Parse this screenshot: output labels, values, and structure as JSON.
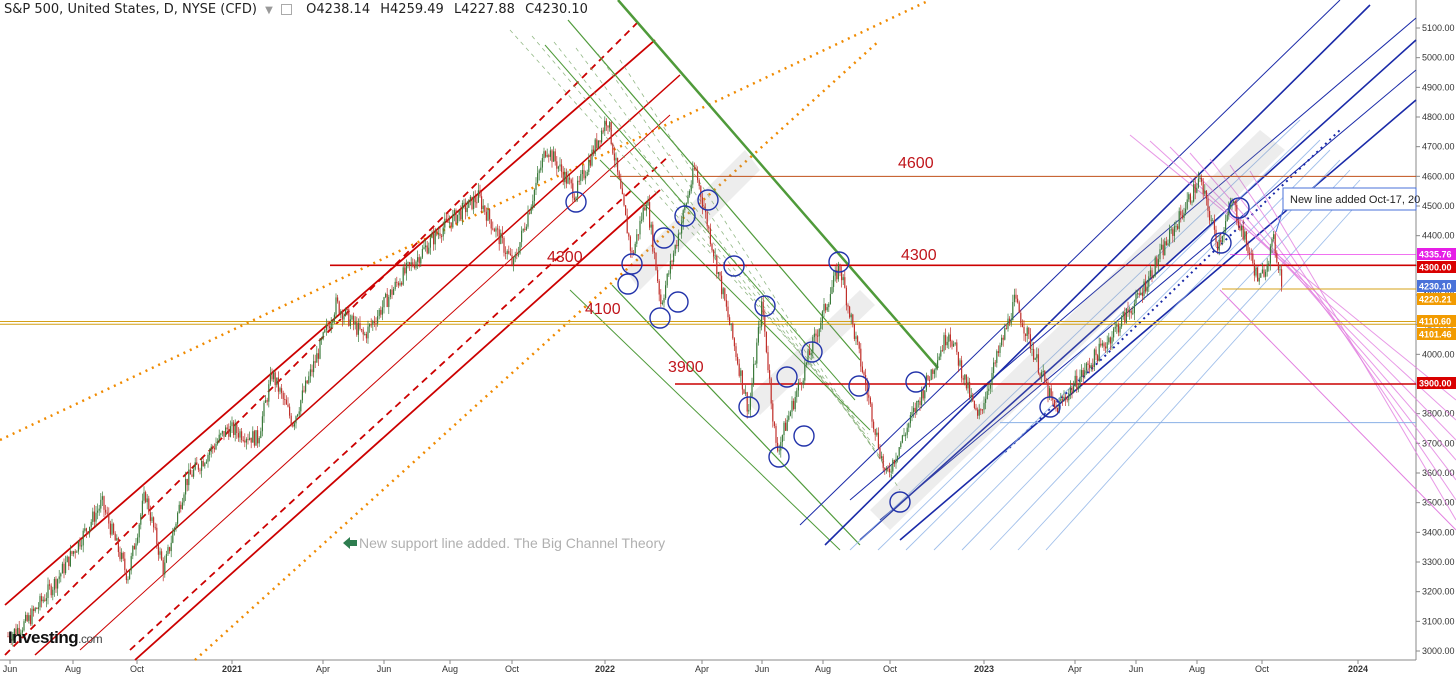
{
  "header": {
    "title": "S&P 500, United States, D, NYSE (CFD)",
    "open": "O4238.14",
    "high": "H4259.49",
    "low": "L4227.88",
    "close": "C4230.10"
  },
  "logo": {
    "name": "Investing",
    "suffix": ".com"
  },
  "colors": {
    "up": "#3a7a3a",
    "down": "#c0302b",
    "red_line": "#cc0000",
    "green_line": "#4f9a3a",
    "blue_line": "#1a2aa8",
    "orange_dot": "#f08a00",
    "pink_line": "#e27fe0",
    "gold_line": "#d4a017"
  },
  "chart_data": {
    "type": "candlestick",
    "title": "",
    "x_ticks": [
      "Jun",
      "Aug",
      "Oct",
      "2021",
      "Apr",
      "Jun",
      "Aug",
      "Oct",
      "2022",
      "Apr",
      "Jun",
      "Aug",
      "Oct",
      "2023",
      "Apr",
      "Jun",
      "Aug",
      "Oct",
      "2024"
    ],
    "y_ticks": [
      3000,
      3100,
      3200,
      3300,
      3400,
      3500,
      3600,
      3700,
      3800,
      3900,
      4000,
      4100,
      4200,
      4300,
      4400,
      4500,
      4600,
      4700,
      4800,
      4900,
      5000,
      5100
    ],
    "ylim": [
      2970,
      5180
    ],
    "price_path": [
      {
        "t": "2020-06-01",
        "v": 3050
      },
      {
        "t": "2020-06-20",
        "v": 3100
      },
      {
        "t": "2020-07-20",
        "v": 3250
      },
      {
        "t": "2020-08-31",
        "v": 3500
      },
      {
        "t": "2020-09-25",
        "v": 3250
      },
      {
        "t": "2020-10-12",
        "v": 3530
      },
      {
        "t": "2020-10-30",
        "v": 3270
      },
      {
        "t": "2020-11-20",
        "v": 3570
      },
      {
        "t": "2020-12-31",
        "v": 3750
      },
      {
        "t": "2021-01-29",
        "v": 3715
      },
      {
        "t": "2021-02-12",
        "v": 3935
      },
      {
        "t": "2021-03-04",
        "v": 3770
      },
      {
        "t": "2021-04-15",
        "v": 4170
      },
      {
        "t": "2021-05-12",
        "v": 4060
      },
      {
        "t": "2021-06-15",
        "v": 4250
      },
      {
        "t": "2021-07-25",
        "v": 4420
      },
      {
        "t": "2021-08-31",
        "v": 4530
      },
      {
        "t": "2021-10-04",
        "v": 4300
      },
      {
        "t": "2021-11-05",
        "v": 4700
      },
      {
        "t": "2021-12-03",
        "v": 4540
      },
      {
        "t": "2022-01-03",
        "v": 4800
      },
      {
        "t": "2022-01-27",
        "v": 4330
      },
      {
        "t": "2022-02-10",
        "v": 4530
      },
      {
        "t": "2022-02-24",
        "v": 4170
      },
      {
        "t": "2022-03-29",
        "v": 4630
      },
      {
        "t": "2022-05-20",
        "v": 3810
      },
      {
        "t": "2022-06-02",
        "v": 4170
      },
      {
        "t": "2022-06-16",
        "v": 3670
      },
      {
        "t": "2022-08-16",
        "v": 4300
      },
      {
        "t": "2022-09-30",
        "v": 3585
      },
      {
        "t": "2022-11-30",
        "v": 4080
      },
      {
        "t": "2022-12-28",
        "v": 3780
      },
      {
        "t": "2023-02-02",
        "v": 4180
      },
      {
        "t": "2023-03-13",
        "v": 3810
      },
      {
        "t": "2023-05-31",
        "v": 4180
      },
      {
        "t": "2023-07-31",
        "v": 4590
      },
      {
        "t": "2023-08-18",
        "v": 4370
      },
      {
        "t": "2023-09-01",
        "v": 4515
      },
      {
        "t": "2023-09-27",
        "v": 4240
      },
      {
        "t": "2023-10-11",
        "v": 4380
      },
      {
        "t": "2023-10-20",
        "v": 4230
      }
    ],
    "horizontal_levels": [
      {
        "value": 4600,
        "label": "4600"
      },
      {
        "value": 4300,
        "label": "4300"
      },
      {
        "value": 4300,
        "label": "4300"
      },
      {
        "value": 4100,
        "label": "4100"
      },
      {
        "value": 3900,
        "label": "3900"
      }
    ],
    "price_tags": [
      {
        "value": 4335.76,
        "label": "4335.76",
        "color": "#e61ee6"
      },
      {
        "value": 4300.0,
        "label": "4300.00",
        "color": "#d90000"
      },
      {
        "value": 4230.1,
        "label": "4230.10",
        "color": "#4a72d9"
      },
      {
        "value": 4220.21,
        "label": "4220.21",
        "color": "#f29b00"
      },
      {
        "value": 4110.6,
        "label": "4110.60",
        "color": "#f29b00"
      },
      {
        "value": 4101.46,
        "label": "4101.46",
        "color": "#f29b00"
      },
      {
        "value": 3900.0,
        "label": "3900.00",
        "color": "#d90000"
      }
    ],
    "annotations": [
      {
        "text": "New support line added. The Big Channel Theory"
      },
      {
        "text": "New line added Oct-17, 20"
      }
    ]
  }
}
